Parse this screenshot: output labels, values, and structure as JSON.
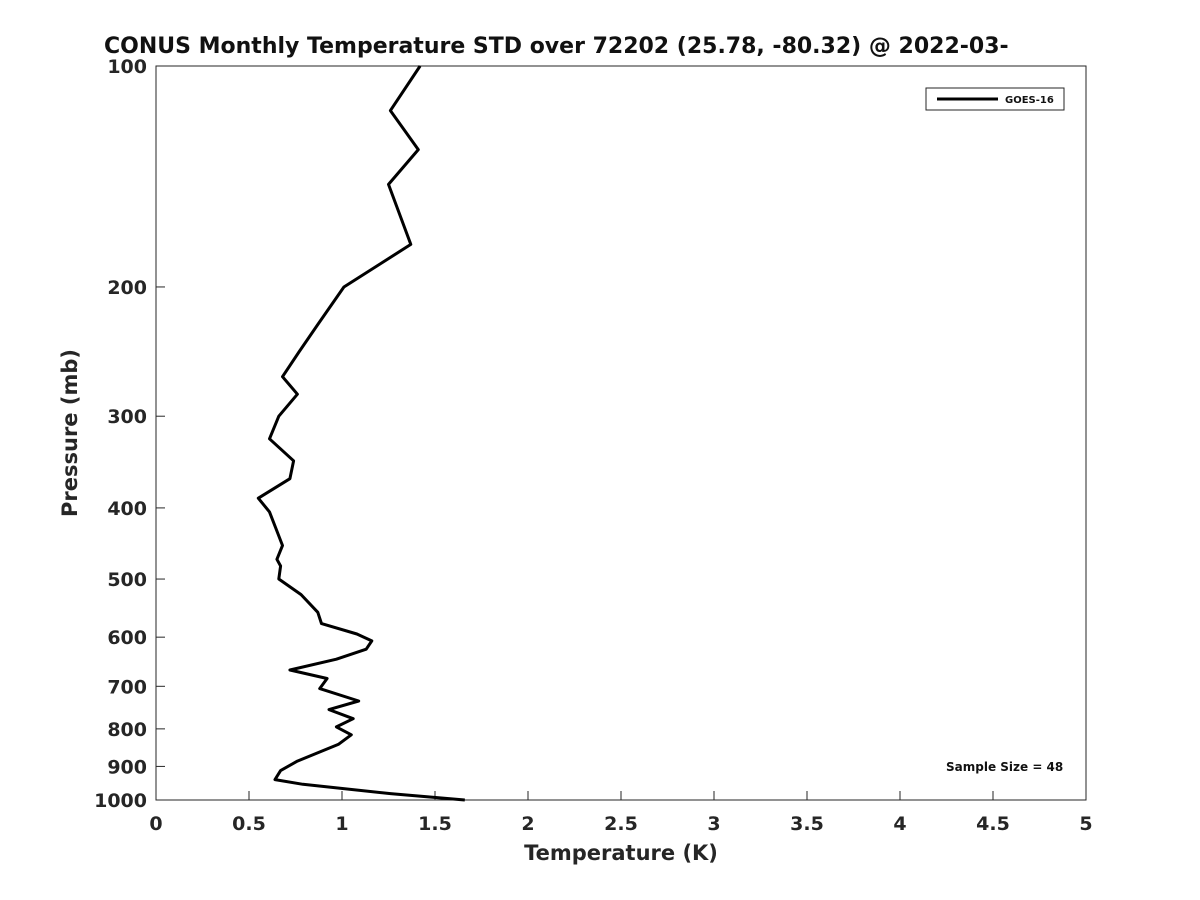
{
  "chart_data": {
    "type": "line",
    "title": "CONUS Monthly Temperature STD over 72202 (25.78, -80.32) @ 2022-03-",
    "xlabel": "Temperature (K)",
    "ylabel": "Pressure (mb)",
    "xlim": [
      0,
      5
    ],
    "ylim": [
      100,
      1000
    ],
    "yscale": "log",
    "yreversed": true,
    "grid": false,
    "legend_position": "top-right",
    "xticks": [
      0,
      0.5,
      1,
      1.5,
      2,
      2.5,
      3,
      3.5,
      4,
      4.5,
      5
    ],
    "xtick_labels": [
      "0",
      "0.5",
      "1",
      "1.5",
      "2",
      "2.5",
      "3",
      "3.5",
      "4",
      "4.5",
      "5"
    ],
    "yticks": [
      100,
      200,
      300,
      400,
      500,
      600,
      700,
      800,
      900,
      1000
    ],
    "ytick_labels": [
      "100",
      "200",
      "300",
      "400",
      "500",
      "600",
      "700",
      "800",
      "900",
      "1000"
    ],
    "series": [
      {
        "name": "GOES-16",
        "color": "#000000",
        "x": [
          1.42,
          1.26,
          1.41,
          1.25,
          1.37,
          1.01,
          0.87,
          0.77,
          0.68,
          0.76,
          0.66,
          0.61,
          0.74,
          0.72,
          0.55,
          0.61,
          0.65,
          0.68,
          0.65,
          0.67,
          0.66,
          0.78,
          0.87,
          0.89,
          1.08,
          1.16,
          1.13,
          0.97,
          0.72,
          0.92,
          0.88,
          1.09,
          0.93,
          1.06,
          0.97,
          1.05,
          0.98,
          0.76,
          0.67,
          0.64,
          0.79,
          1.26,
          1.66
        ],
        "y": [
          100,
          115,
          130,
          145,
          175,
          200,
          225,
          245,
          265,
          280,
          300,
          322,
          345,
          365,
          388,
          405,
          430,
          450,
          470,
          480,
          500,
          525,
          555,
          575,
          594,
          607,
          623,
          643,
          665,
          683,
          705,
          733,
          753,
          775,
          795,
          815,
          840,
          885,
          912,
          938,
          952,
          980,
          1000
        ]
      }
    ],
    "annotations": [
      "Sample Size = 48"
    ]
  },
  "legend": {
    "entries": [
      {
        "label": "GOES-16",
        "color": "#000000"
      }
    ]
  },
  "note": "Sample Size = 48"
}
